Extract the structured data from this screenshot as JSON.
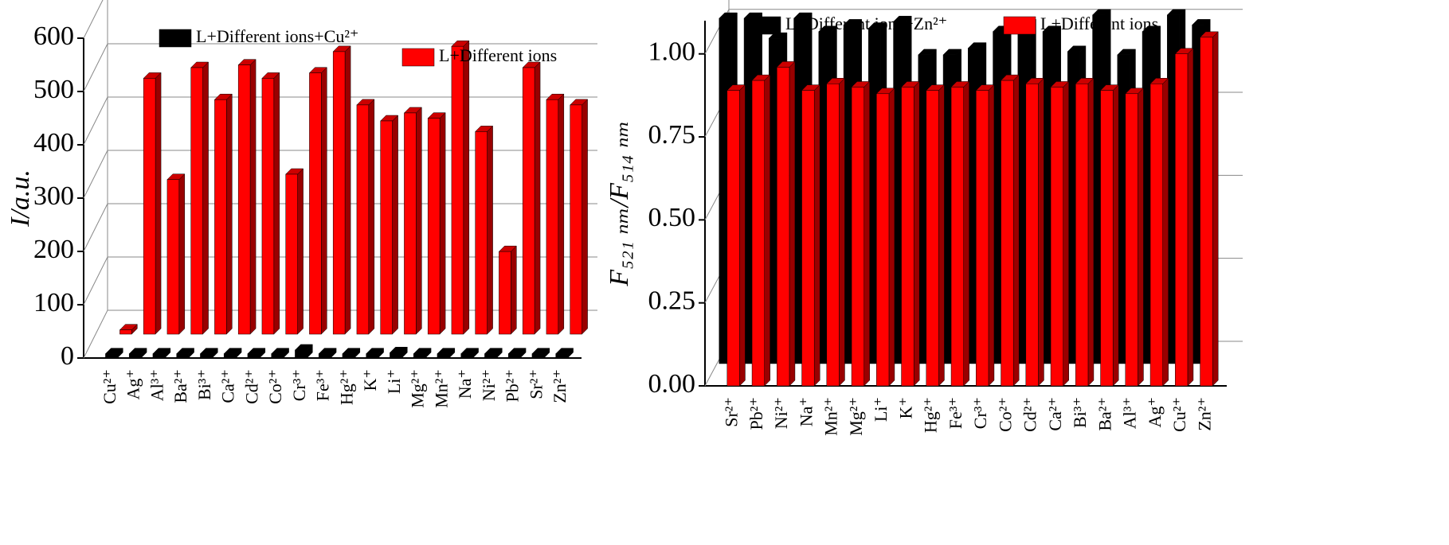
{
  "chart_data": [
    {
      "type": "bar3d",
      "ylabel": "I/a.u.",
      "categories": [
        "Cu²⁺",
        "Ag⁺",
        "Al³⁺",
        "Ba²⁺",
        "Bi³⁺",
        "Ca²⁺",
        "Cd²⁺",
        "Co²⁺",
        "Cr³⁺",
        "Fe³⁺",
        "Hg²⁺",
        "K⁺",
        "Li⁺",
        "Mg²⁺",
        "Mn²⁺",
        "Na⁺",
        "Ni²⁺",
        "Pb²⁺",
        "Sr²⁺",
        "Zn²⁺"
      ],
      "series": [
        {
          "name": "L+Different ions+Cu²⁺",
          "color": "#000000",
          "values": [
            8,
            8,
            8,
            8,
            8,
            8,
            8,
            8,
            15,
            8,
            8,
            8,
            10,
            8,
            8,
            8,
            8,
            8,
            8,
            8
          ]
        },
        {
          "name": "L+Different ions",
          "color": "#ff0000",
          "values": [
            8,
            480,
            290,
            500,
            440,
            505,
            480,
            300,
            490,
            530,
            430,
            400,
            415,
            405,
            540,
            380,
            155,
            500,
            440,
            430
          ]
        }
      ],
      "ylim": [
        0,
        600
      ],
      "yticks": [
        0,
        100,
        200,
        300,
        400,
        500,
        600
      ],
      "grid": true
    },
    {
      "type": "bar3d",
      "ylabel": "F₅₂₁ ₙₘ/F₅₁₄ ₙₘ",
      "categories": [
        "Sr²⁺",
        "Pb²⁺",
        "Ni²⁺",
        "Na⁺",
        "Mn²⁺",
        "Mg²⁺",
        "Li⁺",
        "K⁺",
        "Hg²⁺",
        "Fe³⁺",
        "Cr³⁺",
        "Co²⁺",
        "Cd²⁺",
        "Ca²⁺",
        "Bi³⁺",
        "Ba²⁺",
        "Al³⁺",
        "Ag⁺",
        "Cu²⁺",
        "Zn²⁺"
      ],
      "series": [
        {
          "name": "L+Different ions+Zn²⁺",
          "color": "#000000",
          "values": [
            1.04,
            1.04,
            0.98,
            1.04,
            1.0,
            1.02,
            1.01,
            1.03,
            0.93,
            0.93,
            0.95,
            1.0,
            1.02,
            1.0,
            0.94,
            1.05,
            0.93,
            1.0,
            1.05,
            1.02
          ]
        },
        {
          "name": "L+Different ions",
          "color": "#ff0000",
          "values": [
            0.89,
            0.92,
            0.96,
            0.89,
            0.91,
            0.9,
            0.88,
            0.9,
            0.89,
            0.9,
            0.89,
            0.92,
            0.91,
            0.9,
            0.91,
            0.89,
            0.88,
            0.91,
            1.0,
            1.05
          ]
        }
      ],
      "ylim": [
        0,
        1.1
      ],
      "yticks": [
        {
          "value": 0,
          "label": "0.00"
        },
        {
          "value": 0.25,
          "label": "0.25"
        },
        {
          "value": 0.5,
          "label": "0.50"
        },
        {
          "value": 0.75,
          "label": "0.75"
        },
        {
          "value": 1,
          "label": "1.00"
        }
      ],
      "grid": true
    }
  ]
}
